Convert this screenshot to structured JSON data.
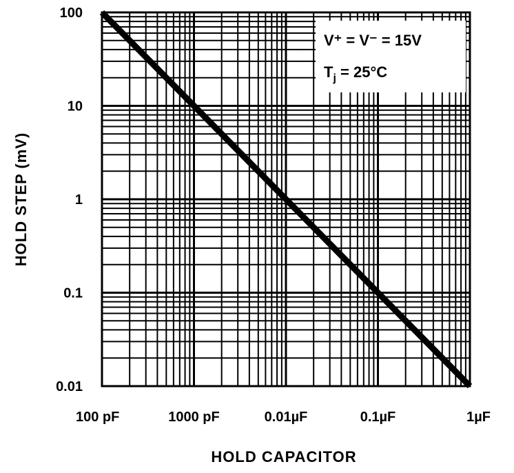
{
  "chart_data": {
    "type": "line",
    "title": "",
    "xlabel": "HOLD CAPACITOR",
    "ylabel": "HOLD STEP (mV)",
    "x_scale": "log",
    "y_scale": "log",
    "x_unit": "F",
    "xlim": [
      1e-10,
      1e-06
    ],
    "ylim": [
      0.01,
      100
    ],
    "x_ticks": [
      {
        "value": 1e-10,
        "label": "100 pF"
      },
      {
        "value": 1e-09,
        "label": "1000 pF"
      },
      {
        "value": 1e-08,
        "label": "0.01µF"
      },
      {
        "value": 1e-07,
        "label": "0.1µF"
      },
      {
        "value": 1e-06,
        "label": "1µF"
      }
    ],
    "y_ticks": [
      {
        "value": 100,
        "label": "100"
      },
      {
        "value": 10,
        "label": "10"
      },
      {
        "value": 1,
        "label": "1"
      },
      {
        "value": 0.1,
        "label": "0.1"
      },
      {
        "value": 0.01,
        "label": "0.01"
      }
    ],
    "grid": true,
    "series": [
      {
        "x": [
          1e-10,
          1e-09,
          1e-08,
          1e-07,
          1e-06
        ],
        "y": [
          100,
          10,
          1,
          0.1,
          0.01
        ]
      }
    ],
    "annotation": {
      "line1": "V⁺ = V⁻ = 15V",
      "line2_main": "T",
      "line2_sub": "j",
      "line2_rest": " = 25°C"
    }
  }
}
